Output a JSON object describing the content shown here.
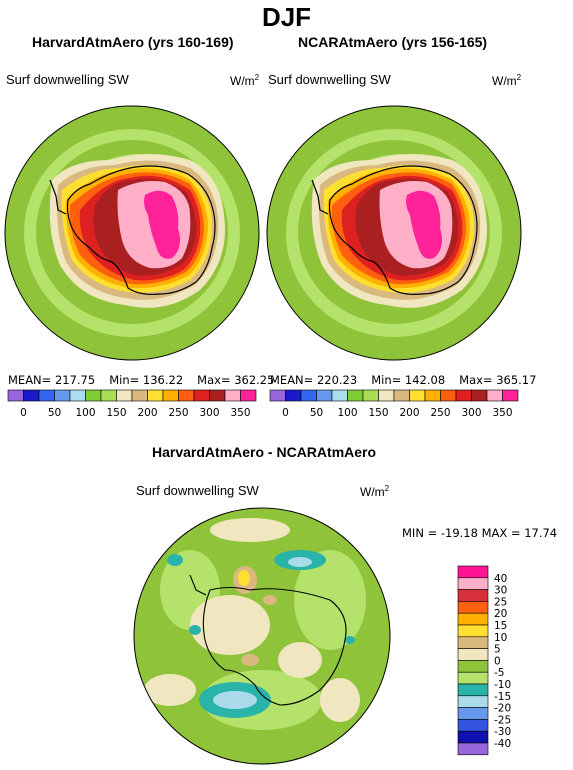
{
  "title": "DJF",
  "top_left": {
    "model_title": "HarvardAtmAero (yrs 160-169)",
    "variable": "Surf downwelling SW",
    "units_base": "W/m",
    "units_exp": "2",
    "stats": {
      "mean": "MEAN= 217.75",
      "min": "Min= 136.22",
      "max": "Max= 362.25"
    }
  },
  "top_right": {
    "model_title": "NCARAtmAero (yrs 156-165)",
    "variable": "Surf downwelling SW",
    "units_base": "W/m",
    "units_exp": "2",
    "stats": {
      "mean": "MEAN= 220.23",
      "min": "Min= 142.08",
      "max": "Max= 365.17"
    }
  },
  "top_colorbar": {
    "ticks": [
      "0",
      "50",
      "100",
      "150",
      "200",
      "250",
      "300",
      "350"
    ],
    "colors": [
      "#9966dd",
      "#1a1acc",
      "#3366ee",
      "#6699ee",
      "#aaddee",
      "#80cc33",
      "#aadd55",
      "#f0e6c0",
      "#d9b980",
      "#ffe030",
      "#ffb000",
      "#ff6010",
      "#dd2020",
      "#aa2020",
      "#ffb0c8",
      "#ff2299"
    ]
  },
  "bottom": {
    "title": "HarvardAtmAero - NCARAtmAero",
    "variable": "Surf downwelling SW",
    "units_base": "W/m",
    "units_exp": "2",
    "stats": "MIN = -19.18  MAX =  17.74",
    "colorbar_labels": [
      "40",
      "30",
      "25",
      "20",
      "15",
      "10",
      "5",
      "0",
      "-5",
      "-10",
      "-15",
      "-20",
      "-25",
      "-30",
      "-40"
    ],
    "colorbar_colors": [
      "#ff1493",
      "#ffb0c8",
      "#d8303a",
      "#ff6010",
      "#ffb000",
      "#ffe030",
      "#d9b980",
      "#f0e6c0",
      "#8fc43a",
      "#b4e26a",
      "#2ab3a8",
      "#aadbe8",
      "#6699ee",
      "#3355dd",
      "#1010b0",
      "#9966dd"
    ]
  }
}
